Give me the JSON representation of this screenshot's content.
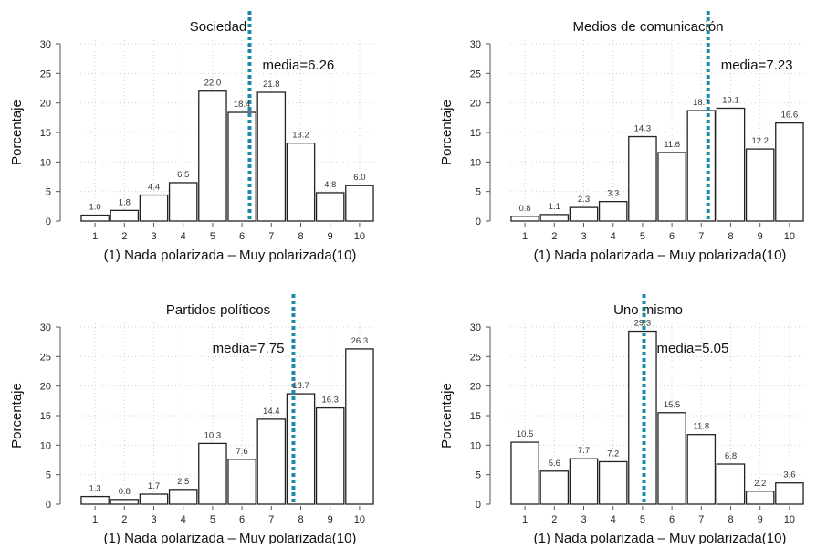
{
  "chart_data": [
    {
      "type": "bar",
      "title": "Sociedad",
      "xlabel": "(1) Nada polarizada – Muy polarizada(10)",
      "ylabel": "Porcentaje",
      "categories": [
        "1",
        "2",
        "3",
        "4",
        "5",
        "6",
        "7",
        "8",
        "9",
        "10"
      ],
      "values": [
        1.0,
        1.8,
        4.4,
        6.5,
        22.0,
        18.4,
        21.8,
        13.2,
        4.8,
        6.0
      ],
      "value_labels": [
        "1.0",
        "1.8",
        "4.4",
        "6.5",
        "22.0",
        "18.4",
        "21.8",
        "13.2",
        "4.8",
        "6.0"
      ],
      "ylim": [
        0,
        30
      ],
      "yticks": [
        0,
        5,
        10,
        15,
        20,
        25,
        30
      ],
      "grid": true,
      "mean": 6.26,
      "mean_label": "media=6.26",
      "mean_label_placement": "right",
      "mean_color": "#1a8ca8"
    },
    {
      "type": "bar",
      "title": "Medios de comunicación",
      "xlabel": "(1) Nada polarizada – Muy polarizada(10)",
      "ylabel": "Porcentaje",
      "categories": [
        "1",
        "2",
        "3",
        "4",
        "5",
        "6",
        "7",
        "8",
        "9",
        "10"
      ],
      "values": [
        0.8,
        1.1,
        2.3,
        3.3,
        14.3,
        11.6,
        18.7,
        19.1,
        12.2,
        16.6
      ],
      "value_labels": [
        "0.8",
        "1.1",
        "2.3",
        "3.3",
        "14.3",
        "11.6",
        "18.7",
        "19.1",
        "12.2",
        "16.6"
      ],
      "ylim": [
        0,
        30
      ],
      "yticks": [
        0,
        5,
        10,
        15,
        20,
        25,
        30
      ],
      "grid": true,
      "mean": 7.23,
      "mean_label": "media=7.23",
      "mean_label_placement": "right",
      "mean_color": "#1a8ca8"
    },
    {
      "type": "bar",
      "title": "Partidos políticos",
      "xlabel": "(1) Nada polarizada – Muy polarizada(10)",
      "ylabel": "Porcentaje",
      "categories": [
        "1",
        "2",
        "3",
        "4",
        "5",
        "6",
        "7",
        "8",
        "9",
        "10"
      ],
      "values": [
        1.3,
        0.8,
        1.7,
        2.5,
        10.3,
        7.6,
        14.4,
        18.7,
        16.3,
        26.3
      ],
      "value_labels": [
        "1.3",
        "0.8",
        "1.7",
        "2.5",
        "10.3",
        "7.6",
        "14.4",
        "18.7",
        "16.3",
        "26.3"
      ],
      "ylim": [
        0,
        30
      ],
      "yticks": [
        0,
        5,
        10,
        15,
        20,
        25,
        30
      ],
      "grid": true,
      "mean": 7.75,
      "mean_label": "media=7.75",
      "mean_label_placement": "left",
      "mean_color": "#1a8ca8"
    },
    {
      "type": "bar",
      "title": "Uno mismo",
      "xlabel": "(1) Nada polarizada – Muy polarizada(10)",
      "ylabel": "Porcentaje",
      "categories": [
        "1",
        "2",
        "3",
        "4",
        "5",
        "6",
        "7",
        "8",
        "9",
        "10"
      ],
      "values": [
        10.5,
        5.6,
        7.7,
        7.2,
        29.3,
        15.5,
        11.8,
        6.8,
        2.2,
        3.6
      ],
      "value_labels": [
        "10.5",
        "5.6",
        "7.7",
        "7.2",
        "29.3",
        "15.5",
        "11.8",
        "6.8",
        "2.2",
        "3.6"
      ],
      "ylim": [
        0,
        30
      ],
      "yticks": [
        0,
        5,
        10,
        15,
        20,
        25,
        30
      ],
      "grid": true,
      "mean": 5.05,
      "mean_label": "media=5.05",
      "mean_label_placement": "right",
      "mean_color": "#1a8ca8"
    }
  ]
}
